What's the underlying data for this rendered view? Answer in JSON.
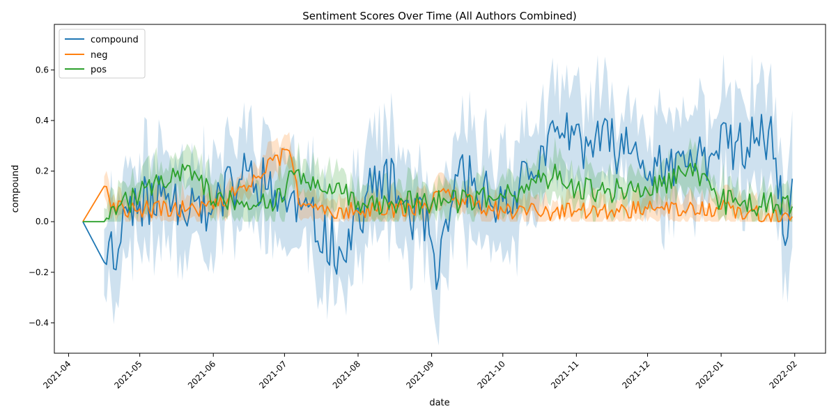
{
  "chart_data": {
    "type": "line",
    "title": "Sentiment Scores Over Time (All Authors Combined)",
    "xlabel": "date",
    "ylabel": "compound",
    "xlim": [
      "2021-03-26",
      "2022-02-14"
    ],
    "ylim": [
      -0.52,
      0.78
    ],
    "yticks": [
      -0.4,
      -0.2,
      0.0,
      0.2,
      0.4,
      0.6
    ],
    "ytick_labels": [
      "−0.4",
      "−0.2",
      "0.0",
      "0.2",
      "0.4",
      "0.6"
    ],
    "xticks": [
      "2021-04-01",
      "2021-05-01",
      "2021-06-01",
      "2021-07-01",
      "2021-08-01",
      "2021-09-01",
      "2021-10-01",
      "2021-11-01",
      "2021-12-01",
      "2022-01-01",
      "2022-02-01"
    ],
    "xtick_labels": [
      "2021-04",
      "2021-05",
      "2021-06",
      "2021-07",
      "2021-08",
      "2021-09",
      "2021-10",
      "2021-11",
      "2021-12",
      "2022-01",
      "2022-02"
    ],
    "grid": false,
    "legend_position": "upper-left",
    "colors": {
      "compound": "#1f77b4",
      "neg": "#ff7f0e",
      "pos": "#2ca02c"
    },
    "series": [
      {
        "name": "compound",
        "x_start": "2021-04-07",
        "x_end": "2022-01-31",
        "points": [
          [
            "2021-04-07",
            0.0
          ],
          [
            "2021-04-16",
            -0.16
          ],
          [
            "2021-04-18",
            -0.08
          ],
          [
            "2021-04-22",
            -0.11
          ],
          [
            "2021-04-24",
            0.05
          ],
          [
            "2021-05-01",
            0.08
          ],
          [
            "2021-05-10",
            0.1
          ],
          [
            "2021-05-24",
            0.08
          ],
          [
            "2021-06-01",
            0.06
          ],
          [
            "2021-06-16",
            0.2
          ],
          [
            "2021-07-01",
            0.1
          ],
          [
            "2021-07-25",
            -0.12
          ],
          [
            "2021-08-10",
            0.2
          ],
          [
            "2021-08-31",
            -0.05
          ],
          [
            "2021-09-04",
            -0.22
          ],
          [
            "2021-09-12",
            0.18
          ],
          [
            "2021-10-01",
            0.08
          ],
          [
            "2021-10-25",
            0.33
          ],
          [
            "2021-11-03",
            0.32
          ],
          [
            "2021-11-25",
            0.29
          ],
          [
            "2021-12-10",
            0.2
          ],
          [
            "2021-12-30",
            0.28
          ],
          [
            "2022-01-15",
            0.31
          ],
          [
            "2022-01-21",
            0.36
          ],
          [
            "2022-01-29",
            -0.06
          ],
          [
            "2022-01-31",
            0.17
          ]
        ]
      },
      {
        "name": "neg",
        "x_start": "2021-04-07",
        "x_end": "2022-01-31",
        "points": [
          [
            "2021-04-07",
            0.0
          ],
          [
            "2021-04-16",
            0.14
          ],
          [
            "2021-04-19",
            0.05
          ],
          [
            "2021-05-01",
            0.05
          ],
          [
            "2021-06-01",
            0.05
          ],
          [
            "2021-07-03",
            0.28
          ],
          [
            "2021-07-08",
            0.06
          ],
          [
            "2021-08-01",
            0.04
          ],
          [
            "2021-09-01",
            0.06
          ],
          [
            "2021-09-03",
            0.12
          ],
          [
            "2021-10-01",
            0.04
          ],
          [
            "2021-11-01",
            0.04
          ],
          [
            "2021-12-01",
            0.05
          ],
          [
            "2022-01-01",
            0.05
          ],
          [
            "2022-01-31",
            0.02
          ]
        ]
      },
      {
        "name": "pos",
        "x_start": "2021-04-07",
        "x_end": "2022-01-31",
        "points": [
          [
            "2021-04-07",
            0.0
          ],
          [
            "2021-04-16",
            0.0
          ],
          [
            "2021-04-22",
            0.06
          ],
          [
            "2021-05-22",
            0.22
          ],
          [
            "2021-06-01",
            0.08
          ],
          [
            "2021-07-01",
            0.09
          ],
          [
            "2021-07-03",
            0.2
          ],
          [
            "2021-08-01",
            0.08
          ],
          [
            "2021-09-01",
            0.07
          ],
          [
            "2021-10-01",
            0.1
          ],
          [
            "2021-10-25",
            0.2
          ],
          [
            "2021-11-01",
            0.13
          ],
          [
            "2021-12-01",
            0.12
          ],
          [
            "2021-12-18",
            0.21
          ],
          [
            "2022-01-01",
            0.08
          ],
          [
            "2022-01-31",
            0.06
          ]
        ]
      }
    ]
  }
}
